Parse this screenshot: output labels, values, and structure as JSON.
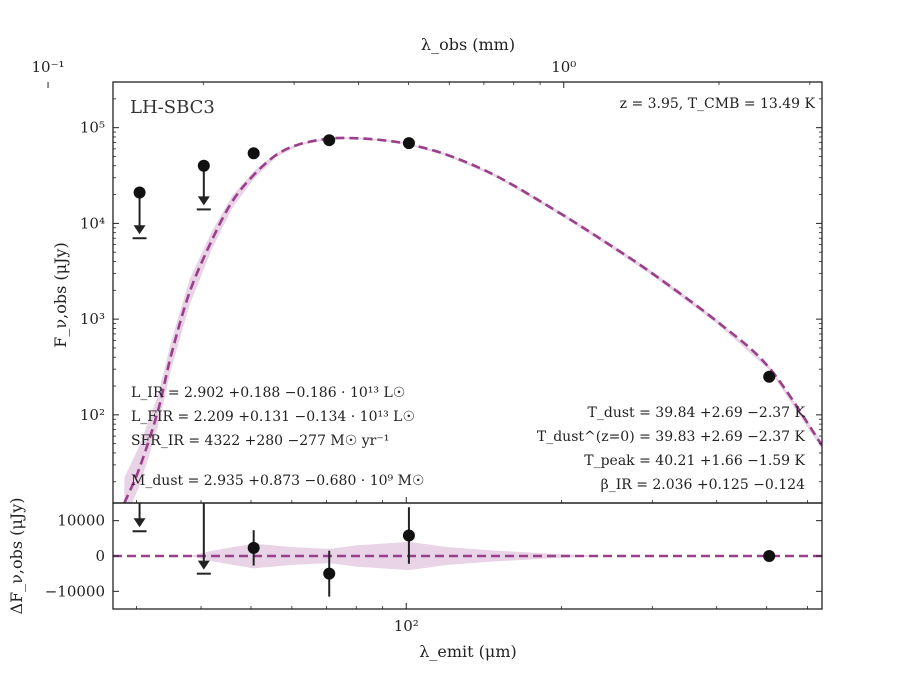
{
  "chart_data": {
    "type": "scatter",
    "source_name": "LH-SBC3",
    "redshift_text": "z = 3.95, T_CMB = 13.49 K",
    "top_axis": {
      "label": "λ_obs (mm)",
      "scale": "log",
      "tick_labels": [
        "10⁻¹",
        "10⁰"
      ],
      "tick_values": [
        0.1,
        1.0
      ]
    },
    "xlabel": "λ_emit (μm)",
    "ylabel": "F_ν,obs (μJy)",
    "residual_ylabel": "ΔF_ν,obs (μJy)",
    "xscale": "log",
    "xlim": [
      27,
      640
    ],
    "yscale": "log",
    "ylim": [
      12,
      300000
    ],
    "residual_ylim": [
      -15000,
      15000
    ],
    "x_tick_labels": [
      "10²"
    ],
    "y_tick_labels": [
      "10²",
      "10³",
      "10⁴",
      "10⁵"
    ],
    "residual_tick_labels": [
      "10000",
      "0",
      "−10000"
    ],
    "detections": [
      {
        "x": 50.6,
        "y": 54000,
        "yerr": 5000
      },
      {
        "x": 70.9,
        "y": 74000,
        "yerr": 6000
      },
      {
        "x": 101.2,
        "y": 69000,
        "yerr": 6000
      },
      {
        "x": 505.6,
        "y": 250,
        "yerr": 20
      }
    ],
    "upper_limits": [
      {
        "x": 30.4,
        "y_marker": 21000,
        "y_limit": 7000
      },
      {
        "x": 40.5,
        "y_marker": 40000,
        "y_limit": 14000
      }
    ],
    "model_curve": [
      [
        28.4,
        12
      ],
      [
        30.4,
        28
      ],
      [
        33,
        110
      ],
      [
        35,
        420
      ],
      [
        38,
        1900
      ],
      [
        42,
        6700
      ],
      [
        46,
        17000
      ],
      [
        50.6,
        32000
      ],
      [
        56,
        52000
      ],
      [
        62,
        67000
      ],
      [
        70.9,
        77000
      ],
      [
        80,
        77500
      ],
      [
        90,
        74000
      ],
      [
        101.2,
        67000
      ],
      [
        120,
        52000
      ],
      [
        150,
        31000
      ],
      [
        200,
        12500
      ],
      [
        250,
        5800
      ],
      [
        300,
        3000
      ],
      [
        400,
        950
      ],
      [
        505.6,
        310
      ],
      [
        640,
        48
      ]
    ],
    "model_band": [
      [
        28.4,
        8,
        22
      ],
      [
        30.4,
        18,
        48
      ],
      [
        33,
        75,
        160
      ],
      [
        35,
        300,
        580
      ],
      [
        38,
        1400,
        2600
      ],
      [
        42,
        5400,
        8300
      ],
      [
        46,
        14500,
        19500
      ],
      [
        50.6,
        29000,
        35000
      ],
      [
        56,
        49500,
        54500
      ],
      [
        62,
        65000,
        69000
      ],
      [
        70.9,
        75500,
        78500
      ],
      [
        80,
        76000,
        79000
      ],
      [
        90,
        72500,
        75500
      ],
      [
        101.2,
        65500,
        68500
      ],
      [
        120,
        50500,
        53500
      ],
      [
        150,
        30000,
        32000
      ],
      [
        200,
        12000,
        13000
      ],
      [
        250,
        5500,
        6100
      ],
      [
        300,
        2850,
        3150
      ],
      [
        400,
        900,
        1000
      ],
      [
        505.6,
        295,
        325
      ],
      [
        640,
        44,
        52
      ]
    ],
    "residuals": [
      {
        "x": 50.6,
        "y": 2300,
        "yerr": 5000
      },
      {
        "x": 70.9,
        "y": -5000,
        "yerr": 6500
      },
      {
        "x": 101.2,
        "y": 5800,
        "yerr": 8000
      },
      {
        "x": 505.6,
        "y": 0,
        "yerr": 400
      }
    ],
    "residual_upper_limits": [
      {
        "x": 30.4,
        "y_marker": 15000,
        "y_limit": 7000
      },
      {
        "x": 40.5,
        "y_marker": 15000,
        "y_limit": -5000
      }
    ],
    "residual_band": [
      [
        38,
        0
      ],
      [
        42,
        1500
      ],
      [
        50.6,
        3500
      ],
      [
        60,
        2500
      ],
      [
        70.9,
        2000
      ],
      [
        80,
        3000
      ],
      [
        101.2,
        4000
      ],
      [
        120,
        2500
      ],
      [
        150,
        1500
      ],
      [
        200,
        500
      ],
      [
        250,
        0
      ]
    ],
    "left_annotations": [
      "L_IR = 2.902 +0.188 −0.186 · 10¹³ L☉",
      "L_FIR = 2.209 +0.131 −0.134 · 10¹³ L☉",
      "SFR_IR = 4322 +280 −277 M☉ yr⁻¹",
      "M_dust = 2.935 +0.873 −0.680 · 10⁹ M☉"
    ],
    "right_annotations": [
      "T_dust = 39.84 +2.69 −2.37 K",
      "T_dust^(z=0) = 39.83 +2.69 −2.37 K",
      "T_peak = 40.21 +1.66 −1.59 K",
      "β_IR = 2.036 +0.125 −0.124"
    ],
    "colors": {
      "model": "#9a3f8c",
      "band": "#e9d3e6",
      "points": "#111111"
    }
  }
}
